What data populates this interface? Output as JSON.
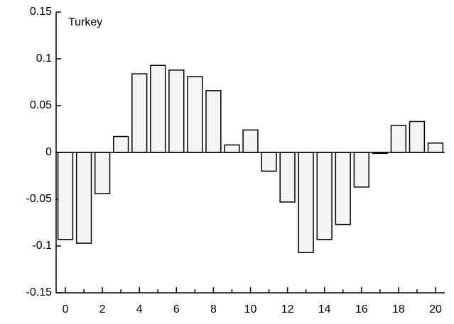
{
  "chart_data": {
    "type": "bar",
    "title": "Turkey",
    "categories": [
      "0",
      null,
      "2",
      null,
      "4",
      null,
      "6",
      null,
      "8",
      null,
      "10",
      null,
      "12",
      null,
      "14",
      null,
      "16",
      null,
      "18",
      null,
      "20"
    ],
    "values": [
      -0.093,
      -0.097,
      -0.044,
      0.017,
      0.084,
      0.093,
      0.088,
      0.081,
      0.066,
      0.008,
      0.024,
      -0.02,
      -0.053,
      -0.107,
      -0.093,
      -0.077,
      -0.037,
      -0.001,
      0.029,
      0.033,
      0.01
    ],
    "color": "#f4f4f4",
    "ylim": [
      -0.15,
      0.15
    ],
    "yticks": [
      -0.15,
      -0.1,
      -0.05,
      0,
      0.05,
      0.1,
      0.15
    ],
    "grid": false
  }
}
